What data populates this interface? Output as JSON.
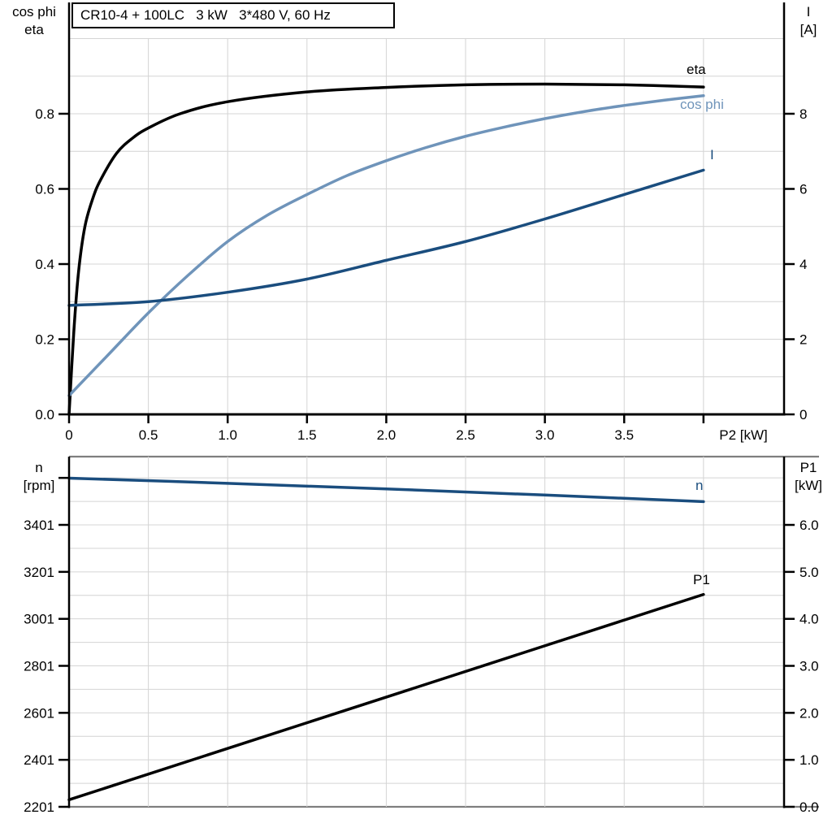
{
  "title": "CR10-4 + 100LC   3 kW   3*480 V, 60 Hz",
  "colors": {
    "curve_black": "#000000",
    "curve_dark_blue": "#1a4d7e",
    "curve_light_blue": "#6f94ba",
    "grid": "#d4d4d4",
    "frame_gray": "#7f7f7f",
    "text": "#000000"
  },
  "top_chart": {
    "left_title": [
      "cos phi",
      "eta"
    ],
    "right_title": [
      "I",
      "[A]"
    ],
    "x_label": "P2 [kW]",
    "curve_labels": {
      "eta": "eta",
      "cos_phi": "cos phi",
      "current": "I"
    }
  },
  "bottom_chart": {
    "left_title": [
      "n",
      "[rpm]"
    ],
    "right_title": [
      "P1",
      "[kW]"
    ],
    "curve_labels": {
      "n": "n",
      "p1": "P1"
    }
  },
  "chart_data": [
    {
      "type": "line",
      "title": "CR10-4 + 100LC   3 kW   3*480 V, 60 Hz",
      "xlabel": "P2 [kW]",
      "xlim": [
        0,
        4.508
      ],
      "x_ticks": [
        0,
        0.5,
        1.0,
        1.5,
        2.0,
        2.5,
        3.0,
        3.5,
        4.0
      ],
      "x_tick_labels": [
        "0",
        "0.5",
        "1.0",
        "1.5",
        "2.0",
        "2.5",
        "3.0",
        "3.5",
        ""
      ],
      "left_axis": {
        "label": "cos phi / eta",
        "range": [
          0,
          1.0
        ],
        "ticks": [
          0,
          0.2,
          0.4,
          0.6,
          0.8
        ],
        "tick_labels": [
          "0.0",
          "0.2",
          "0.4",
          "0.6",
          "0.8"
        ],
        "minor_grid_step": 0.1
      },
      "right_axis": {
        "label": "I [A]",
        "range": [
          0,
          10
        ],
        "ticks": [
          0,
          2,
          4,
          6,
          8
        ],
        "tick_labels": [
          "0",
          "2",
          "4",
          "6",
          "8"
        ]
      },
      "grid": {
        "vertical_step": 0.5,
        "on": true
      },
      "legend_position": "curve-end-labels",
      "series": [
        {
          "name": "eta",
          "axis": "left",
          "color": "#000000",
          "x": [
            0,
            0.03,
            0.06,
            0.1,
            0.15,
            0.2,
            0.3,
            0.4,
            0.5,
            0.7,
            1.0,
            1.5,
            2.0,
            2.5,
            3.0,
            3.5,
            4.0
          ],
          "y": [
            0,
            0.22,
            0.38,
            0.5,
            0.575,
            0.625,
            0.695,
            0.735,
            0.762,
            0.8,
            0.832,
            0.858,
            0.87,
            0.877,
            0.879,
            0.877,
            0.871
          ]
        },
        {
          "name": "cos phi",
          "axis": "left",
          "color": "#6f94ba",
          "x": [
            0,
            0.25,
            0.5,
            0.75,
            1.0,
            1.25,
            1.5,
            1.75,
            2.0,
            2.25,
            2.5,
            2.75,
            3.0,
            3.25,
            3.5,
            3.75,
            4.0
          ],
          "y": [
            0.05,
            0.16,
            0.27,
            0.37,
            0.46,
            0.53,
            0.585,
            0.635,
            0.675,
            0.71,
            0.74,
            0.765,
            0.787,
            0.806,
            0.822,
            0.836,
            0.848
          ]
        },
        {
          "name": "I",
          "axis": "right",
          "color": "#1a4d7e",
          "x": [
            0,
            0.5,
            1.0,
            1.5,
            2.0,
            2.5,
            3.0,
            3.5,
            4.0
          ],
          "y": [
            2.9,
            3.0,
            3.25,
            3.6,
            4.1,
            4.6,
            5.2,
            5.85,
            6.5
          ]
        }
      ]
    },
    {
      "type": "line",
      "xlabel": "",
      "xlim": [
        0,
        4.508
      ],
      "x_ticks": [],
      "x_tick_labels": [],
      "left_axis": {
        "label": "n [rpm]",
        "range": [
          2201,
          3691.5
        ],
        "ticks": [
          2201,
          2401,
          2601,
          2801,
          3001,
          3201,
          3401
        ],
        "tick_labels": [
          "2201",
          "2401",
          "2601",
          "2801",
          "3001",
          "3201",
          "3401"
        ],
        "extra_unlabeled_tick": 3601,
        "minor_grid_step": 100
      },
      "right_axis": {
        "label": "P1 [kW]",
        "range": [
          0,
          7.453
        ],
        "ticks": [
          0,
          1,
          2,
          3,
          4,
          5,
          6
        ],
        "tick_labels": [
          "0.0",
          "1.0",
          "2.0",
          "3.0",
          "4.0",
          "5.0",
          "6.0"
        ]
      },
      "grid": {
        "vertical_step": 0.5,
        "on": true
      },
      "legend_position": "curve-end-labels",
      "series": [
        {
          "name": "n",
          "axis": "left",
          "color": "#1a4d7e",
          "x": [
            0,
            1,
            2,
            3,
            4
          ],
          "y": [
            3600,
            3578,
            3554,
            3528,
            3500
          ]
        },
        {
          "name": "P1",
          "axis": "right",
          "color": "#000000",
          "x": [
            0,
            4
          ],
          "y": [
            0.15,
            4.52
          ]
        }
      ]
    }
  ]
}
